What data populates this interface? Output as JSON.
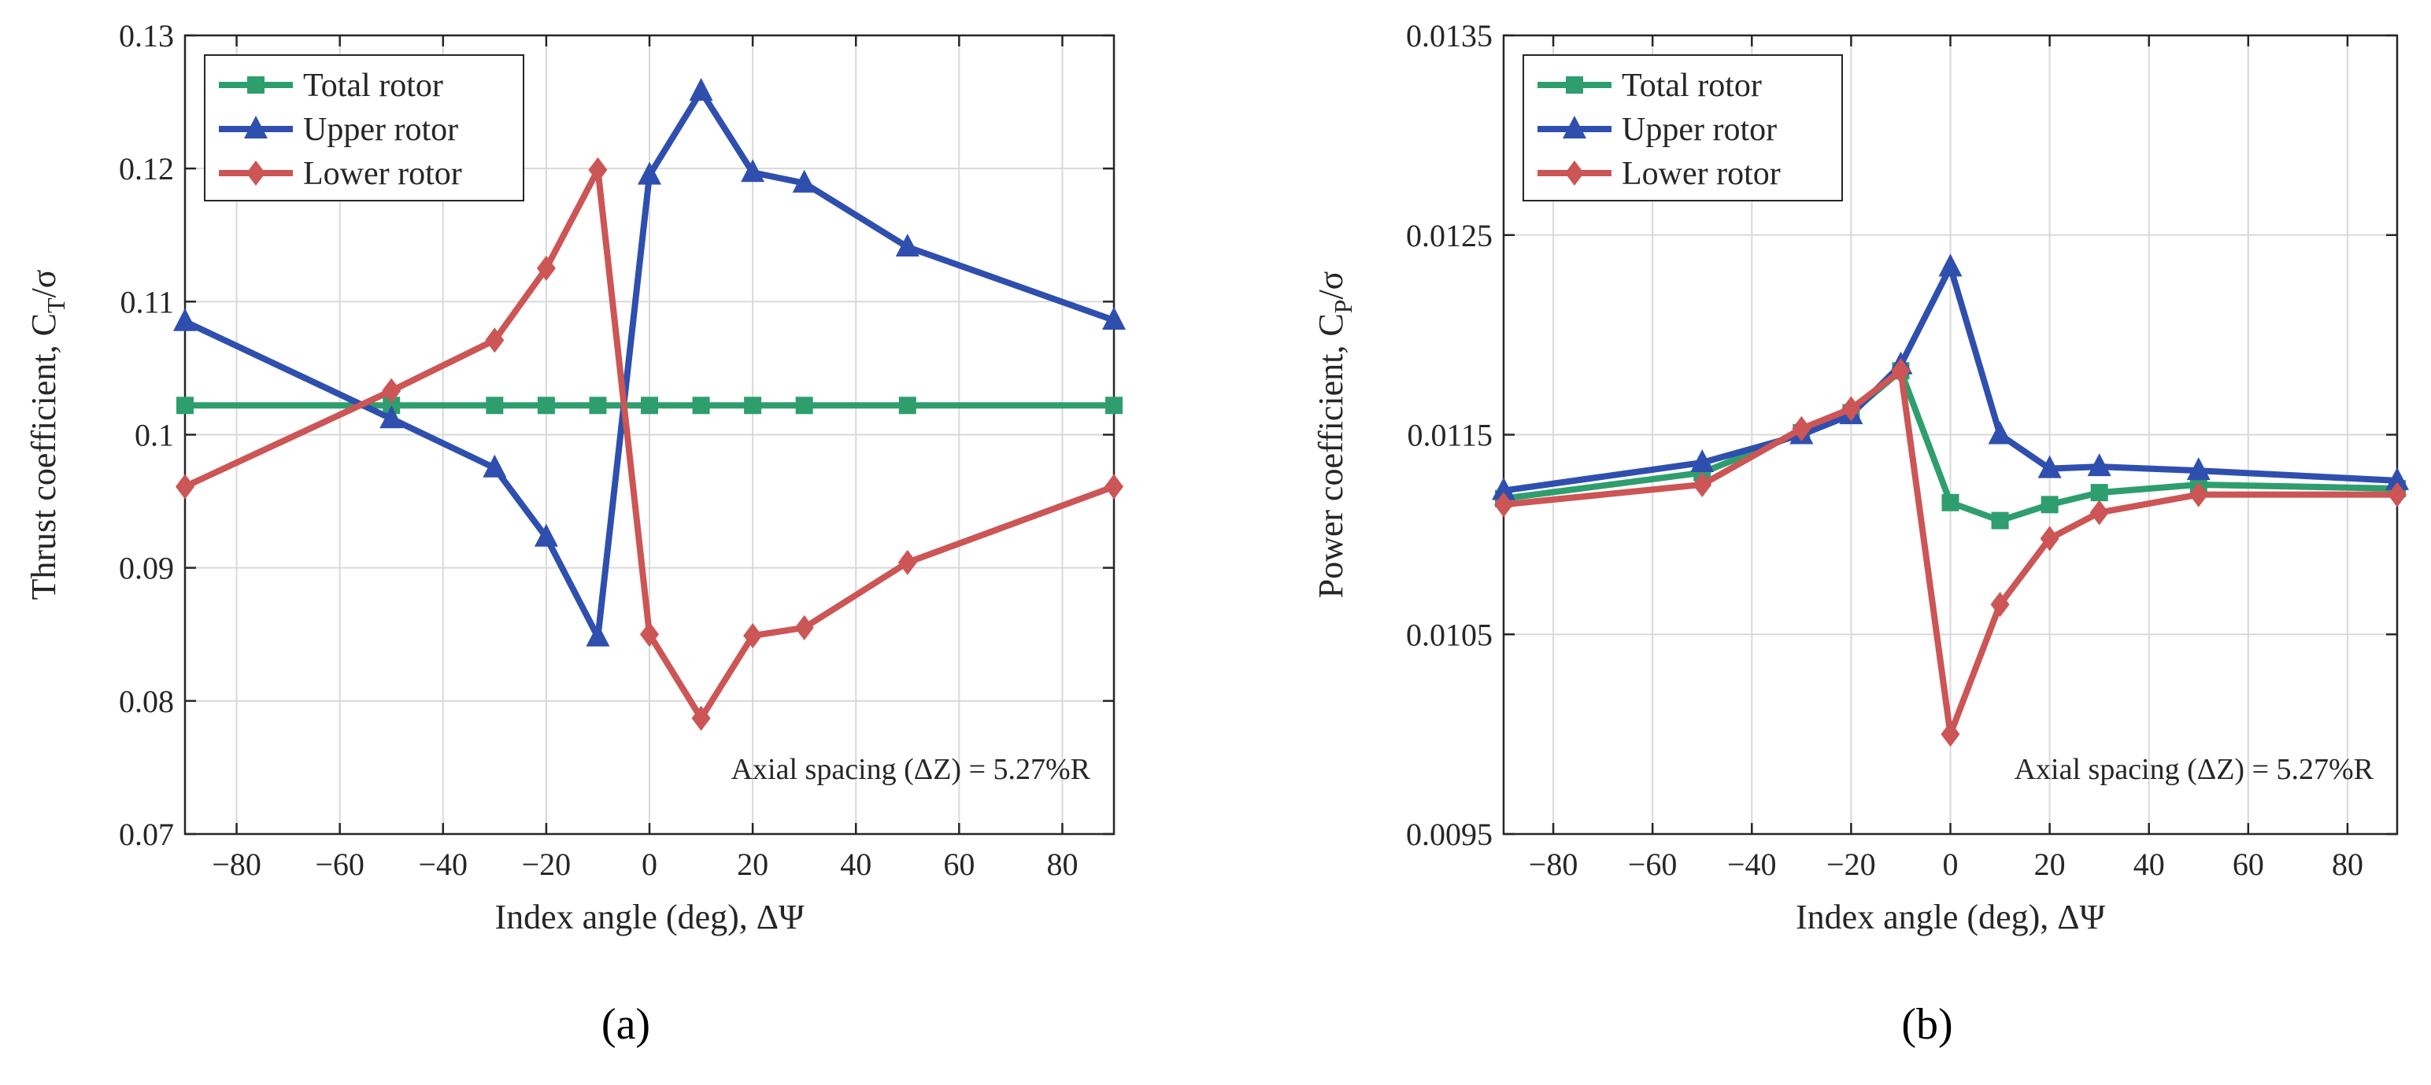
{
  "chart_data": [
    {
      "type": "line",
      "panel_label": "(a)",
      "xlabel": "Index angle (deg), ΔΨ",
      "ylabel": "Thrust coefficient, C",
      "ylabel_sub": "T",
      "ylabel_suffix": "/σ",
      "xlim": [
        -90,
        90
      ],
      "ylim": [
        0.07,
        0.13
      ],
      "xticks": [
        -80,
        -60,
        -40,
        -20,
        0,
        20,
        40,
        60,
        80
      ],
      "xtick_labels": [
        "−80",
        "−60",
        "−40",
        "−20",
        "0",
        "20",
        "40",
        "60",
        "80"
      ],
      "yticks": [
        0.07,
        0.08,
        0.09,
        0.1,
        0.11,
        0.12,
        0.13
      ],
      "ytick_labels": [
        "0.07",
        "0.08",
        "0.09",
        "0.1",
        "0.11",
        "0.12",
        "0.13"
      ],
      "grid": true,
      "legend_position": "top-left",
      "annotation": "Axial spacing (ΔZ) = 5.27%R",
      "series": [
        {
          "name": "Total rotor",
          "color": "#2e9e6e",
          "marker": "square",
          "x": [
            -90,
            -50,
            -30,
            -20,
            -10,
            0,
            10,
            20,
            30,
            50,
            90
          ],
          "y": [
            0.1022,
            0.1022,
            0.1022,
            0.1022,
            0.1022,
            0.1022,
            0.1022,
            0.1022,
            0.1022,
            0.1022,
            0.1022
          ]
        },
        {
          "name": "Upper rotor",
          "color": "#2f4faf",
          "marker": "triangle",
          "x": [
            -90,
            -50,
            -30,
            -20,
            -10,
            0,
            10,
            20,
            30,
            50,
            90
          ],
          "y": [
            0.1085,
            0.1012,
            0.0975,
            0.0923,
            0.0848,
            0.1195,
            0.1258,
            0.1197,
            0.1189,
            0.1141,
            0.1086
          ]
        },
        {
          "name": "Lower rotor",
          "color": "#cc5555",
          "marker": "diamond",
          "x": [
            -90,
            -50,
            -30,
            -20,
            -10,
            0,
            10,
            20,
            30,
            50,
            90
          ],
          "y": [
            0.0961,
            0.1033,
            0.1071,
            0.1125,
            0.1199,
            0.085,
            0.0787,
            0.0849,
            0.0855,
            0.0904,
            0.0961
          ]
        }
      ]
    },
    {
      "type": "line",
      "panel_label": "(b)",
      "xlabel": "Index angle (deg), ΔΨ",
      "ylabel": "Power coefficient, C",
      "ylabel_sub": "P",
      "ylabel_suffix": "/σ",
      "xlim": [
        -90,
        90
      ],
      "ylim": [
        0.0095,
        0.0135
      ],
      "xticks": [
        -80,
        -60,
        -40,
        -20,
        0,
        20,
        40,
        60,
        80
      ],
      "xtick_labels": [
        "−80",
        "−60",
        "−40",
        "−20",
        "0",
        "20",
        "40",
        "60",
        "80"
      ],
      "yticks": [
        0.0095,
        0.0105,
        0.0115,
        0.0125,
        0.0135
      ],
      "ytick_labels": [
        "0.0095",
        "0.0105",
        "0.0115",
        "0.0125",
        "0.0135"
      ],
      "grid": true,
      "legend_position": "top-left",
      "annotation": "Axial spacing (ΔZ) = 5.27%R",
      "series": [
        {
          "name": "Total rotor",
          "color": "#2e9e6e",
          "marker": "square",
          "x": [
            -90,
            -50,
            -30,
            -20,
            -10,
            0,
            10,
            20,
            30,
            50,
            90
          ],
          "y": [
            0.01118,
            0.01131,
            0.01151,
            0.01161,
            0.01182,
            0.01116,
            0.01107,
            0.01115,
            0.01121,
            0.01125,
            0.01123
          ]
        },
        {
          "name": "Upper rotor",
          "color": "#2f4faf",
          "marker": "triangle",
          "x": [
            -90,
            -50,
            -30,
            -20,
            -10,
            0,
            10,
            20,
            30,
            50,
            90
          ],
          "y": [
            0.01122,
            0.01136,
            0.0115,
            0.0116,
            0.01185,
            0.01234,
            0.0115,
            0.01133,
            0.01134,
            0.01132,
            0.01127
          ]
        },
        {
          "name": "Lower rotor",
          "color": "#cc5555",
          "marker": "diamond",
          "x": [
            -90,
            -50,
            -30,
            -20,
            -10,
            0,
            10,
            20,
            30,
            50,
            90
          ],
          "y": [
            0.01115,
            0.01125,
            0.01153,
            0.01163,
            0.01182,
            0.01,
            0.01065,
            0.01098,
            0.01111,
            0.0112,
            0.0112
          ]
        }
      ]
    }
  ]
}
